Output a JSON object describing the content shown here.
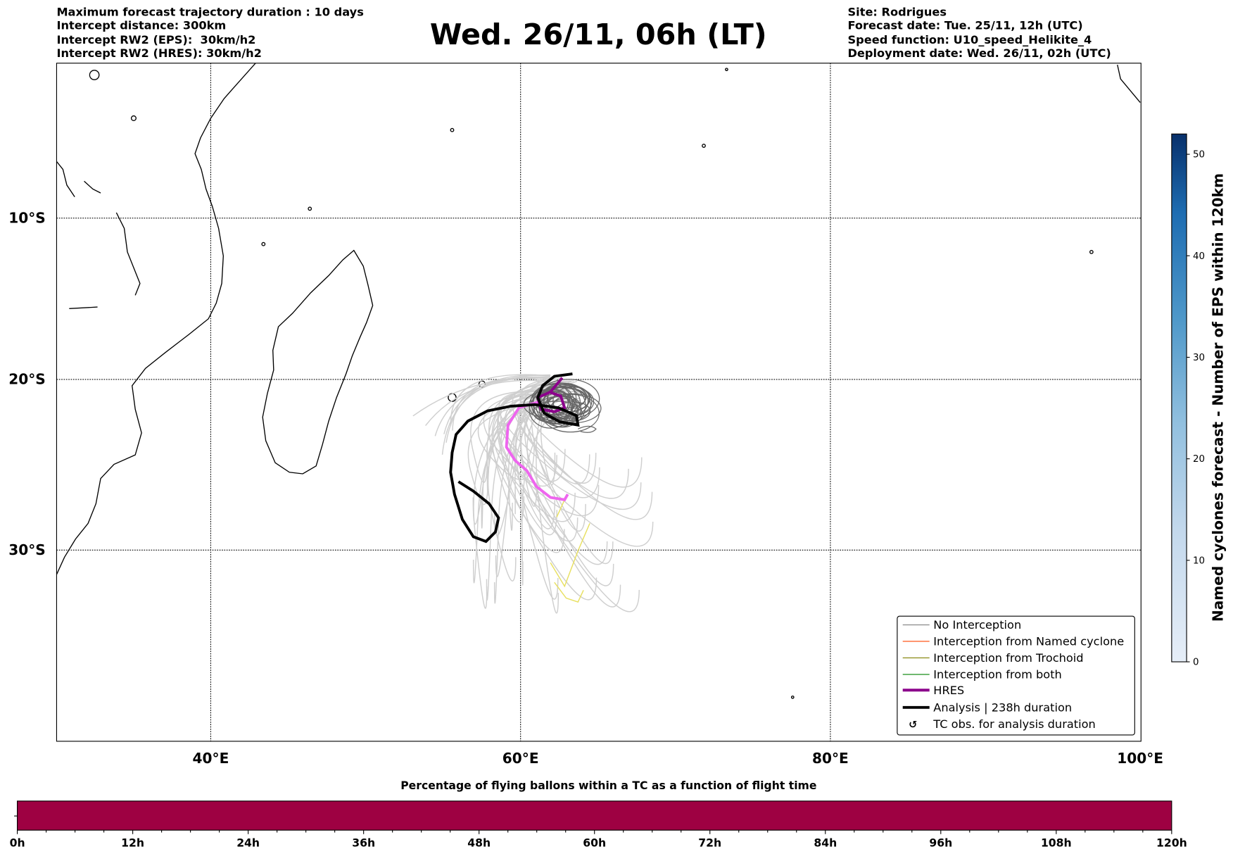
{
  "header": {
    "left": [
      "Maximum forecast trajectory duration : 10 days",
      "Intercept distance: 300km",
      "Intercept RW2 (EPS):  30km/h2",
      "Intercept RW2 (HRES): 30km/h2"
    ],
    "title": "Wed. 26/11, 06h (LT)",
    "right": [
      "Site: Rodrigues",
      "Forecast date: Tue. 25/11, 12h (UTC)",
      "Speed function: U10_speed_Helikite_4",
      "Deployment date: Wed. 26/11, 02h (UTC)"
    ]
  },
  "map": {
    "lon_range": [
      30,
      100
    ],
    "lat_range": [
      0,
      -40
    ],
    "lon_ticks": [
      "40°E",
      "60°E",
      "80°E",
      "100°E"
    ],
    "lat_ticks": [
      "10°S",
      "20°S",
      "30°S"
    ]
  },
  "legend": [
    {
      "label": "No Interception",
      "color": "#808080"
    },
    {
      "label": "Interception from Named cyclone",
      "color": "#ff4500"
    },
    {
      "label": "Interception from Trochoid",
      "color": "#808000"
    },
    {
      "label": "Interception from both",
      "color": "#008000"
    },
    {
      "label": "HRES",
      "color": "#8b008b"
    },
    {
      "label": "Analysis | 238h duration",
      "color": "#000000"
    },
    {
      "label": "TC obs. for analysis duration",
      "icon": "cyclone-icon"
    }
  ],
  "colorbar": {
    "label": "Named cyclones forecast - Number of EPS within 120km",
    "ticks": [
      "0",
      "10",
      "20",
      "30",
      "40",
      "50"
    ],
    "range": [
      0,
      52
    ]
  },
  "bottom_bar": {
    "title": "Percentage of flying ballons within a TC as a function of flight time",
    "ticks": [
      "0h",
      "12h",
      "24h",
      "36h",
      "48h",
      "60h",
      "72h",
      "84h",
      "96h",
      "108h",
      "120h"
    ],
    "fill_color": "#9e0142"
  }
}
